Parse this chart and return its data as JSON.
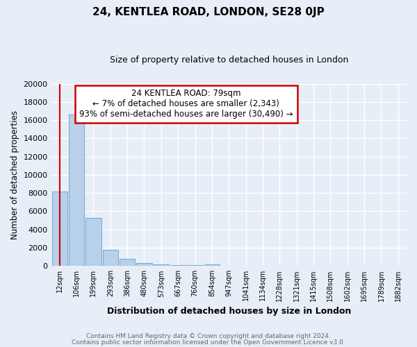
{
  "title": "24, KENTLEA ROAD, LONDON, SE28 0JP",
  "subtitle": "Size of property relative to detached houses in London",
  "xlabel": "Distribution of detached houses by size in London",
  "ylabel": "Number of detached properties",
  "bar_color": "#b8d0ea",
  "bar_edge_color": "#7aadd4",
  "annotation_box_color": "#ffffff",
  "annotation_border_color": "#cc0000",
  "vline_color": "#cc0000",
  "background_color": "#e8eef8",
  "grid_color": "#ffffff",
  "footer1": "Contains HM Land Registry data © Crown copyright and database right 2024.",
  "footer2": "Contains public sector information licensed under the Open Government Licence v3.0.",
  "annotation_title": "24 KENTLEA ROAD: 79sqm",
  "annotation_line1": "← 7% of detached houses are smaller (2,343)",
  "annotation_line2": "93% of semi-detached houses are larger (30,490) →",
  "categories": [
    "12sqm",
    "106sqm",
    "199sqm",
    "293sqm",
    "386sqm",
    "480sqm",
    "573sqm",
    "667sqm",
    "760sqm",
    "854sqm",
    "947sqm",
    "1041sqm",
    "1134sqm",
    "1228sqm",
    "1321sqm",
    "1415sqm",
    "1508sqm",
    "1602sqm",
    "1695sqm",
    "1789sqm",
    "1882sqm"
  ],
  "values": [
    8200,
    16600,
    5300,
    1750,
    750,
    350,
    200,
    130,
    100,
    200,
    0,
    0,
    0,
    0,
    0,
    0,
    0,
    0,
    0,
    0,
    0
  ],
  "ylim": [
    0,
    20000
  ],
  "yticks": [
    0,
    2000,
    4000,
    6000,
    8000,
    10000,
    12000,
    14000,
    16000,
    18000,
    20000
  ],
  "vline_x": 0
}
